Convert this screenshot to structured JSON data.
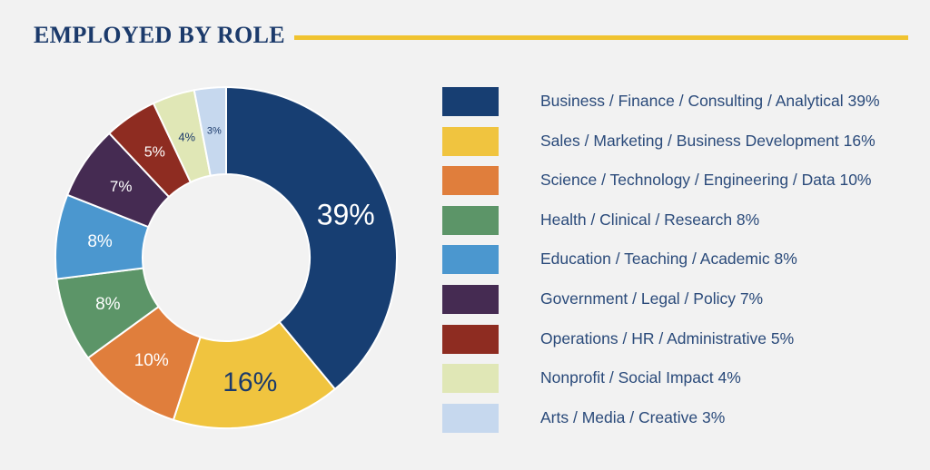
{
  "title": "EMPLOYED BY ROLE",
  "chart_data": {
    "type": "pie",
    "donut": true,
    "title": "EMPLOYED BY ROLE",
    "legend_position": "right",
    "categories": [
      "Business / Finance / Consulting / Analytical",
      "Sales / Marketing / Business Development",
      "Science / Technology / Engineering / Data",
      "Health / Clinical / Research",
      "Education / Teaching / Academic",
      "Government / Legal / Policy",
      "Operations / HR / Administrative",
      "Nonprofit / Social Impact",
      "Arts / Media / Creative"
    ],
    "values": [
      39,
      16,
      10,
      8,
      8,
      7,
      5,
      4,
      3
    ],
    "slice_labels": [
      "39%",
      "16%",
      "10%",
      "8%",
      "8%",
      "7%",
      "5%",
      "4%",
      "3%"
    ],
    "legend_labels": [
      "Business / Finance / Consulting / Analytical 39%",
      "Sales / Marketing / Business Development 16%",
      "Science / Technology / Engineering / Data 10%",
      "Health / Clinical / Research 8%",
      "Education / Teaching / Academic 8%",
      "Government / Legal / Policy 7%",
      "Operations / HR / Administrative 5%",
      "Nonprofit / Social Impact 4%",
      "Arts / Media / Creative 3%"
    ],
    "colors": [
      "#173e72",
      "#f0c43f",
      "#e07e3c",
      "#5c9568",
      "#4b97cf",
      "#452b52",
      "#8e2c21",
      "#e0e7b6",
      "#c6d8ee"
    ],
    "label_colors": [
      "#ffffff",
      "#1b3a6b",
      "#ffffff",
      "#ffffff",
      "#ffffff",
      "#ffffff",
      "#ffffff",
      "#1b3a6b",
      "#1b3a6b"
    ]
  }
}
